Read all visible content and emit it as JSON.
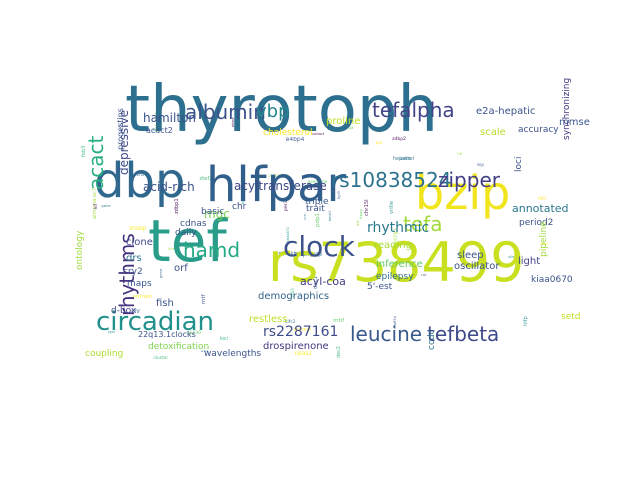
{
  "words": [
    {
      "text": "thyrotoph",
      "color": "#2d6f8e"
    },
    {
      "text": "tef",
      "color": "#2a9d8a"
    },
    {
      "text": "rs738499",
      "color": "#c8e020"
    },
    {
      "text": "hlfpar",
      "color": "#2f5f8a"
    },
    {
      "text": "dbp",
      "color": "#31688e"
    },
    {
      "text": "bzip",
      "color": "#f1e51d"
    },
    {
      "text": "circadian",
      "color": "#21918c"
    },
    {
      "text": "clock",
      "color": "#3b528b"
    },
    {
      "text": "leucine",
      "color": "#38598c"
    },
    {
      "text": "tefbeta",
      "color": "#3e4a89"
    },
    {
      "text": "rs10838524",
      "color": "#2c728e"
    },
    {
      "text": "albumin",
      "color": "#3b528b"
    },
    {
      "text": "tefalpha",
      "color": "#414487"
    },
    {
      "text": "zipper",
      "color": "#433e85"
    },
    {
      "text": "hamd",
      "color": "#23a983"
    },
    {
      "text": "rhythms",
      "color": "#46327e"
    },
    {
      "text": "acact",
      "color": "#29af7f"
    },
    {
      "text": "vbp",
      "color": "#24868e"
    },
    {
      "text": "tefa",
      "color": "#a2da37"
    },
    {
      "text": "rs2287161",
      "color": "#3e4c8a"
    },
    {
      "text": "rhythmic",
      "color": "#2a788e"
    },
    {
      "text": "acyltransferase",
      "color": "#3f4788"
    },
    {
      "text": "acid-rich",
      "color": "#3b528b"
    },
    {
      "text": "hamilton",
      "color": "#3b528b"
    },
    {
      "text": "depressive",
      "color": "#3e4a89"
    },
    {
      "text": "drospirenone",
      "color": "#453781"
    },
    {
      "text": "acyl-coa",
      "color": "#424086"
    },
    {
      "text": "mgc",
      "color": "#7ad151"
    },
    {
      "text": "demographics",
      "color": "#33638d"
    },
    {
      "text": "proline",
      "color": "#bddf26"
    },
    {
      "text": "cholesterol",
      "color": "#fde725"
    },
    {
      "text": "e2a-hepatic",
      "color": "#3b528b"
    },
    {
      "text": "mmse",
      "color": "#38598c"
    },
    {
      "text": "annotated",
      "color": "#2a788e"
    },
    {
      "text": "scale",
      "color": "#b5de2b"
    },
    {
      "text": "reading",
      "color": "#a5db36"
    },
    {
      "text": "inference",
      "color": "#5ec962"
    },
    {
      "text": "oscillator",
      "color": "#3b528b"
    },
    {
      "text": "epilepsy",
      "color": "#2e6e8e"
    },
    {
      "text": "sleep",
      "color": "#3b528b"
    },
    {
      "text": "light",
      "color": "#414487"
    },
    {
      "text": "ontology",
      "color": "#9fda3a"
    },
    {
      "text": "restless",
      "color": "#bddf26"
    },
    {
      "text": "detoxification",
      "color": "#7fd34e"
    },
    {
      "text": "wavelengths",
      "color": "#3b528b"
    },
    {
      "text": "coupling",
      "color": "#addc30"
    },
    {
      "text": "clone",
      "color": "#3e4a89"
    },
    {
      "text": "drs",
      "color": "#2c728e"
    },
    {
      "text": "fish",
      "color": "#3b528b"
    },
    {
      "text": "orf",
      "color": "#3b528b"
    },
    {
      "text": "d-box",
      "color": "#414487"
    },
    {
      "text": "maps",
      "color": "#38598c"
    },
    {
      "text": "cry2",
      "color": "#3b528b"
    },
    {
      "text": "daily",
      "color": "#3b528b"
    },
    {
      "text": "cdnas",
      "color": "#3b528b"
    },
    {
      "text": "basic",
      "color": "#3b528b"
    },
    {
      "text": "chr",
      "color": "#3b528b"
    },
    {
      "text": "trait",
      "color": "#3b528b"
    },
    {
      "text": "triple",
      "color": "#38598c"
    },
    {
      "text": "5'-est",
      "color": "#3b528b"
    },
    {
      "text": "period2",
      "color": "#3b528b"
    },
    {
      "text": "accuracy",
      "color": "#3b528b"
    },
    {
      "text": "synchronizing",
      "color": "#46327e"
    },
    {
      "text": "loci",
      "color": "#3b528b"
    },
    {
      "text": "pipeline",
      "color": "#a0da39"
    },
    {
      "text": "kiaa0670",
      "color": "#3b528b"
    },
    {
      "text": "setd",
      "color": "#c2df23"
    },
    {
      "text": "22q13.1clocks",
      "color": "#3b528b"
    },
    {
      "text": "progestins",
      "color": "#3b528b"
    },
    {
      "text": "acact2",
      "color": "#3b528b"
    },
    {
      "text": "ccdc",
      "color": "#2c728e"
    }
  ],
  "tiny_words": [
    "kifc4c",
    "kiaa1672",
    "lrpap",
    "zdbp2",
    "icertef",
    "rs6354",
    "shsbp",
    "epiplakin",
    "cluster",
    "fgd3",
    "fob1",
    "gp130",
    "chr15l",
    "zhif1",
    "almcrna-ec7",
    "fdf1",
    "kifc2",
    "ztef2",
    "mtf",
    "hlfp",
    "eprpa",
    "zdbp1",
    "arhd",
    "trib",
    "scoreat",
    "chr",
    "fob3",
    "rep65a",
    "asmc",
    "mtif",
    "cohort",
    "gene",
    "hlf",
    "pol",
    "bhlh",
    "nfil3",
    "rxr",
    "ppar",
    "per1",
    "per3",
    "bmal1",
    "cry1",
    "npas2",
    "dec1",
    "dec2",
    "e4bp4",
    "vrille",
    "pdp1",
    "kif",
    "hepatic",
    "liver",
    "renal",
    "gene",
    "loci",
    "snp",
    "allele",
    "genotype",
    "phase",
    "amplitude",
    "zeitgeber",
    "entrain"
  ]
}
